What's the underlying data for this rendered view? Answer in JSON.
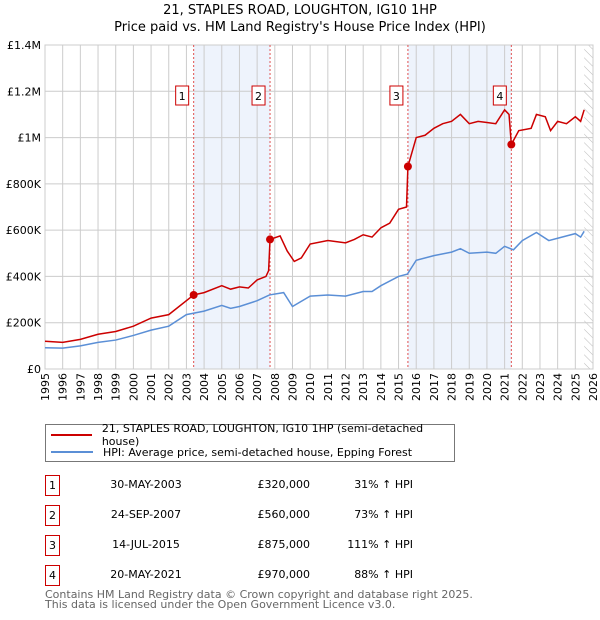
{
  "title": "21, STAPLES ROAD, LOUGHTON, IG10 1HP",
  "subtitle": "Price paid vs. HM Land Registry's House Price Index (HPI)",
  "chart_data": {
    "type": "line",
    "title": "21, STAPLES ROAD, LOUGHTON, IG10 1HP",
    "subtitle": "Price paid vs. HM Land Registry's House Price Index (HPI)",
    "xlim": [
      1995,
      2026
    ],
    "ylim": [
      0,
      1400000
    ],
    "x_ticks": [
      "1995",
      "1996",
      "1997",
      "1998",
      "1999",
      "2000",
      "2001",
      "2002",
      "2003",
      "2004",
      "2005",
      "2006",
      "2007",
      "2008",
      "2009",
      "2010",
      "2011",
      "2012",
      "2013",
      "2014",
      "2015",
      "2016",
      "2017",
      "2018",
      "2019",
      "2020",
      "2021",
      "2022",
      "2023",
      "2024",
      "2025",
      "2026"
    ],
    "y_ticks": [
      {
        "v": 0,
        "label": "£0"
      },
      {
        "v": 200000,
        "label": "£200K"
      },
      {
        "v": 400000,
        "label": "£400K"
      },
      {
        "v": 600000,
        "label": "£600K"
      },
      {
        "v": 800000,
        "label": "£800K"
      },
      {
        "v": 1000000,
        "label": "£1M"
      },
      {
        "v": 1200000,
        "label": "£1.2M"
      },
      {
        "v": 1400000,
        "label": "£1.4M"
      }
    ],
    "grid": true,
    "series": [
      {
        "name": "21, STAPLES ROAD, LOUGHTON, IG10 1HP (semi-detached house)",
        "color": "#cc0000",
        "points": [
          [
            1995,
            120000
          ],
          [
            1996,
            115000
          ],
          [
            1997,
            128000
          ],
          [
            1998,
            150000
          ],
          [
            1999,
            162000
          ],
          [
            2000,
            185000
          ],
          [
            2001,
            220000
          ],
          [
            2002,
            235000
          ],
          [
            2003.41,
            320000
          ],
          [
            2004,
            330000
          ],
          [
            2005,
            360000
          ],
          [
            2005.5,
            345000
          ],
          [
            2006,
            355000
          ],
          [
            2006.5,
            350000
          ],
          [
            2007,
            385000
          ],
          [
            2007.5,
            400000
          ],
          [
            2007.65,
            425000
          ],
          [
            2007.73,
            560000
          ],
          [
            2008.3,
            575000
          ],
          [
            2008.7,
            510000
          ],
          [
            2009.1,
            465000
          ],
          [
            2009.5,
            480000
          ],
          [
            2010,
            540000
          ],
          [
            2011,
            555000
          ],
          [
            2012,
            545000
          ],
          [
            2012.5,
            560000
          ],
          [
            2013,
            580000
          ],
          [
            2013.5,
            570000
          ],
          [
            2014,
            610000
          ],
          [
            2014.5,
            630000
          ],
          [
            2015,
            690000
          ],
          [
            2015.45,
            700000
          ],
          [
            2015.53,
            875000
          ],
          [
            2016,
            1000000
          ],
          [
            2016.5,
            1010000
          ],
          [
            2017,
            1040000
          ],
          [
            2017.5,
            1060000
          ],
          [
            2018,
            1070000
          ],
          [
            2018.5,
            1100000
          ],
          [
            2019,
            1060000
          ],
          [
            2019.5,
            1070000
          ],
          [
            2020,
            1065000
          ],
          [
            2020.5,
            1060000
          ],
          [
            2021,
            1120000
          ],
          [
            2021.25,
            1100000
          ],
          [
            2021.38,
            970000
          ],
          [
            2021.8,
            1030000
          ],
          [
            2022.5,
            1040000
          ],
          [
            2022.8,
            1100000
          ],
          [
            2023.3,
            1090000
          ],
          [
            2023.6,
            1030000
          ],
          [
            2024,
            1070000
          ],
          [
            2024.5,
            1060000
          ],
          [
            2025,
            1090000
          ],
          [
            2025.3,
            1070000
          ],
          [
            2025.5,
            1120000
          ]
        ]
      },
      {
        "name": "HPI: Average price, semi-detached house, Epping Forest",
        "color": "#5b8fd6",
        "points": [
          [
            1995,
            92000
          ],
          [
            1996,
            90000
          ],
          [
            1997,
            100000
          ],
          [
            1998,
            115000
          ],
          [
            1999,
            125000
          ],
          [
            2000,
            145000
          ],
          [
            2001,
            168000
          ],
          [
            2002,
            185000
          ],
          [
            2003,
            235000
          ],
          [
            2004,
            250000
          ],
          [
            2005,
            275000
          ],
          [
            2005.5,
            262000
          ],
          [
            2006,
            270000
          ],
          [
            2007,
            295000
          ],
          [
            2007.7,
            320000
          ],
          [
            2008.5,
            330000
          ],
          [
            2009,
            270000
          ],
          [
            2010,
            315000
          ],
          [
            2011,
            320000
          ],
          [
            2012,
            315000
          ],
          [
            2013,
            335000
          ],
          [
            2013.5,
            335000
          ],
          [
            2014,
            360000
          ],
          [
            2015,
            400000
          ],
          [
            2015.5,
            410000
          ],
          [
            2016,
            470000
          ],
          [
            2017,
            490000
          ],
          [
            2018,
            505000
          ],
          [
            2018.5,
            520000
          ],
          [
            2019,
            500000
          ],
          [
            2020,
            505000
          ],
          [
            2020.5,
            500000
          ],
          [
            2021,
            530000
          ],
          [
            2021.5,
            515000
          ],
          [
            2022,
            555000
          ],
          [
            2022.8,
            590000
          ],
          [
            2023.5,
            555000
          ],
          [
            2024,
            565000
          ],
          [
            2025,
            585000
          ],
          [
            2025.3,
            570000
          ],
          [
            2025.5,
            595000
          ]
        ]
      }
    ],
    "sales": [
      {
        "id": "1",
        "x": 2003.41,
        "value": 320000
      },
      {
        "id": "2",
        "x": 2007.73,
        "value": 560000
      },
      {
        "id": "3",
        "x": 2015.53,
        "value": 875000
      },
      {
        "id": "4",
        "x": 2021.38,
        "value": 970000
      }
    ],
    "shaded_ranges": [
      [
        2003.41,
        2007.73
      ],
      [
        2015.53,
        2021.38
      ]
    ],
    "forecast_hatch_from": 2025.5,
    "legend_placement": "below"
  },
  "legend": {
    "property": "21, STAPLES ROAD, LOUGHTON, IG10 1HP (semi-detached house)",
    "hpi": "HPI: Average price, semi-detached house, Epping Forest"
  },
  "transactions": [
    {
      "num": "1",
      "date": "30-MAY-2003",
      "price": "£320,000",
      "hpi": "31% ↑ HPI"
    },
    {
      "num": "2",
      "date": "24-SEP-2007",
      "price": "£560,000",
      "hpi": "73% ↑ HPI"
    },
    {
      "num": "3",
      "date": "14-JUL-2015",
      "price": "£875,000",
      "hpi": "111% ↑ HPI"
    },
    {
      "num": "4",
      "date": "20-MAY-2021",
      "price": "£970,000",
      "hpi": "88% ↑ HPI"
    }
  ],
  "footer": {
    "line1": "Contains HM Land Registry data © Crown copyright and database right 2025.",
    "line2": "This data is licensed under the Open Government Licence v3.0."
  }
}
